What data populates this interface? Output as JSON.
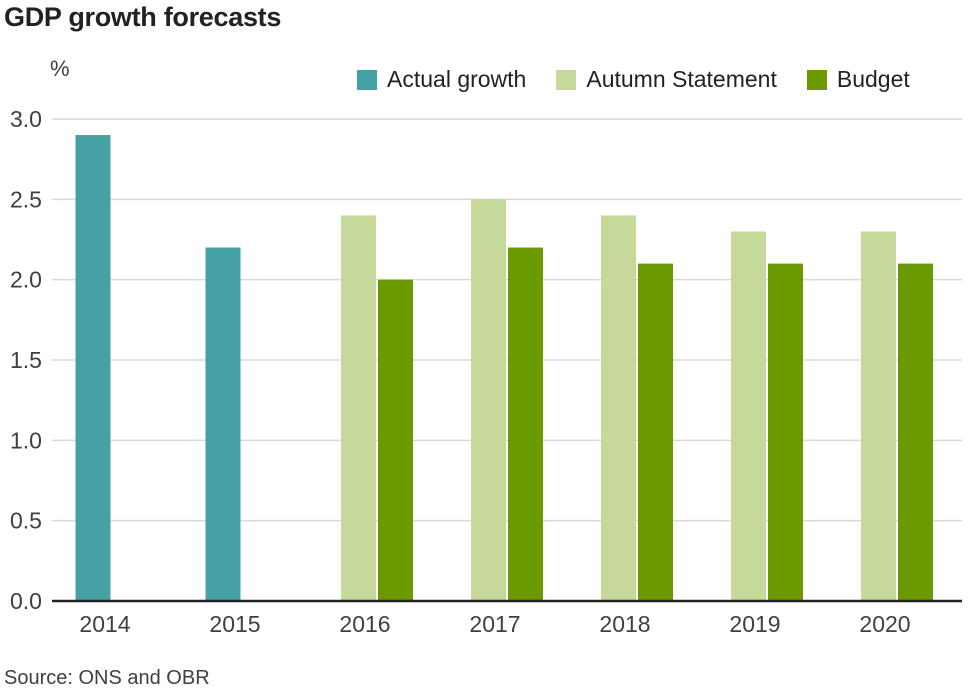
{
  "title": "GDP growth forecasts",
  "unit_label": "%",
  "source": "Source: ONS and OBR",
  "colors": {
    "actual": "#45a1a3",
    "autumn": "#c6d99b",
    "budget": "#6b9a00",
    "grid": "#d9d9d9",
    "axis": "#222222",
    "text": "#404040"
  },
  "legend": [
    {
      "label": "Actual growth",
      "color": "#45a1a3"
    },
    {
      "label": "Autumn Statement",
      "color": "#c6d99b"
    },
    {
      "label": "Budget",
      "color": "#6b9a00"
    }
  ],
  "chart_data": {
    "type": "bar",
    "title": "GDP growth forecasts",
    "xlabel": "",
    "ylabel": "%",
    "ylim": [
      0,
      3.0
    ],
    "yticks": [
      "0.0",
      "0.5",
      "1.0",
      "1.5",
      "2.0",
      "2.5",
      "3.0"
    ],
    "grid": true,
    "legend_position": "top-right",
    "categories": [
      "2014",
      "2015",
      "2016",
      "2017",
      "2018",
      "2019",
      "2020"
    ],
    "series": [
      {
        "name": "Actual growth",
        "color": "#45a1a3",
        "values": [
          2.9,
          2.2,
          null,
          null,
          null,
          null,
          null
        ]
      },
      {
        "name": "Autumn Statement",
        "color": "#c6d99b",
        "values": [
          null,
          null,
          2.4,
          2.5,
          2.4,
          2.3,
          2.3
        ]
      },
      {
        "name": "Budget",
        "color": "#6b9a00",
        "values": [
          null,
          null,
          2.0,
          2.2,
          2.1,
          2.1,
          2.1
        ]
      }
    ]
  }
}
